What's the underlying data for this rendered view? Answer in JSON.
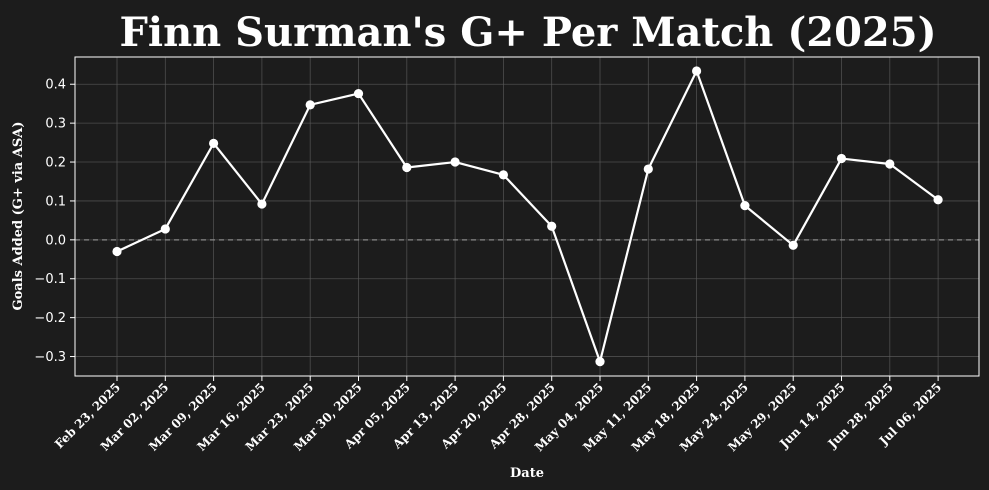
{
  "colors": {
    "background": "#1c1c1c",
    "line": "#ffffff",
    "grid": "#5a5a5a",
    "zero_line": "#8a8a8a"
  },
  "chart_data": {
    "type": "line",
    "title": "Finn Surman's G+ Per Match (2025)",
    "xlabel": "Date",
    "ylabel": "Goals Added (G+ via ASA)",
    "ylim": [
      -0.35,
      0.47
    ],
    "yticks": [
      -0.3,
      -0.2,
      -0.1,
      0.0,
      0.1,
      0.2,
      0.3,
      0.4
    ],
    "ytick_labels": [
      "−0.3",
      "−0.2",
      "−0.1",
      "0.0",
      "0.1",
      "0.2",
      "0.3",
      "0.4"
    ],
    "grid": true,
    "zero_reference_line": "dashed",
    "categories": [
      "Feb 23, 2025",
      "Mar 02, 2025",
      "Mar 09, 2025",
      "Mar 16, 2025",
      "Mar 23, 2025",
      "Mar 30, 2025",
      "Apr 05, 2025",
      "Apr 13, 2025",
      "Apr 20, 2025",
      "Apr 28, 2025",
      "May 04, 2025",
      "May 11, 2025",
      "May 18, 2025",
      "May 24, 2025",
      "May 29, 2025",
      "Jun 14, 2025",
      "Jun 28, 2025",
      "Jul 06, 2025"
    ],
    "values": [
      -0.03,
      0.028,
      0.248,
      0.092,
      0.347,
      0.376,
      0.186,
      0.2,
      0.167,
      0.035,
      -0.313,
      0.182,
      0.434,
      0.088,
      -0.014,
      0.209,
      0.195,
      0.103
    ]
  }
}
